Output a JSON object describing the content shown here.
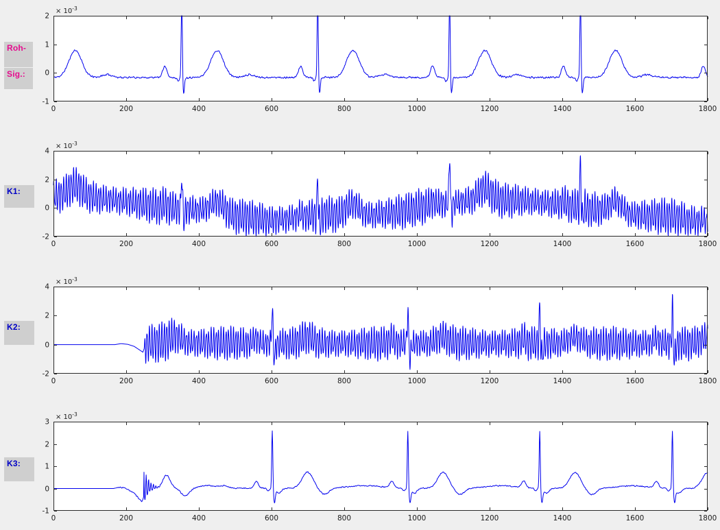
{
  "figure": {
    "bg": "#efefef",
    "plot_bg": "#ffffff",
    "frame_color": "#2a2a2a",
    "tick_label_color": "#1a1a1a",
    "line_color": "#0000ee",
    "label_pink": "#e60a8e",
    "label_blue": "#0000c6"
  },
  "side_labels": [
    {
      "text": "Roh-",
      "color": "#e60a8e"
    },
    {
      "text": "Sig.:",
      "color": "#e60a8e"
    },
    {
      "text": "K1:",
      "color": "#0000c6"
    },
    {
      "text": "K2:",
      "color": "#0000c6"
    },
    {
      "text": "K3:",
      "color": "#0000c6"
    }
  ],
  "chart_data": [
    {
      "id": "roh_sig",
      "type": "line",
      "label": "Roh-Sig.:",
      "line_color": "#0000ee",
      "xlim": [
        0,
        1800
      ],
      "ylim": [
        -1,
        2
      ],
      "x_ticks": [
        0,
        200,
        400,
        600,
        800,
        1000,
        1200,
        1400,
        1600,
        1800
      ],
      "y_ticks": [
        -1,
        0,
        1,
        2
      ],
      "y_scale": {
        "mantissa": "× 10",
        "exponent": "-3"
      },
      "units": "1e-3",
      "description": "Raw ECG: QRS spikes near t=353/727/1090/1450 clipped at 2e-3, S-dips to -0.6e-3, T-waves ~0.8e-3 at t=60/450/824/1187/1547, P-waves ~0.25e-3, baseline -0.16e-3 with noise",
      "signal": {
        "step": 1,
        "seed": 11,
        "noise_amp": 0.045,
        "drift": [
          [
            0,
            -0.16
          ],
          [
            1800,
            -0.16
          ]
        ],
        "beats": {
          "times": [
            -37,
            353,
            727,
            1090,
            1450,
            1835
          ],
          "components": [
            {
              "dt": -47,
              "amp": 0.4,
              "width": 8
            },
            {
              "dt": -10,
              "amp": -0.12,
              "width": 4
            },
            {
              "dt": 0,
              "amp": 3.3,
              "width": 2.1
            },
            {
              "dt": 5,
              "amp": -0.55,
              "width": 3.2
            },
            {
              "dt": 97,
              "amp": 0.95,
              "width": 25
            },
            {
              "dt": 185,
              "amp": 0.1,
              "width": 20
            }
          ]
        },
        "gauss": [],
        "damped": [],
        "osc": null
      }
    },
    {
      "id": "k1",
      "type": "line",
      "label": "K1:",
      "line_color": "#0000ee",
      "xlim": [
        0,
        1800
      ],
      "ylim": [
        -2,
        4
      ],
      "x_ticks": [
        0,
        200,
        400,
        600,
        800,
        1000,
        1200,
        1400,
        1600,
        1800
      ],
      "y_ticks": [
        -2,
        0,
        2,
        4
      ],
      "y_scale": {
        "mantissa": "× 10",
        "exponent": "-3"
      },
      "units": "1e-3",
      "description": "ECG with strong mains-interference comb (~±1e-3) and baseline wander from +0.9e-3 down to -1.1e-3; QRS spikes at 353(2.6)/727(2.6)/1090(4, clipped)/1450(3.2)",
      "signal": {
        "step": 0.5,
        "seed": 23,
        "noise_amp": 0.09,
        "drift": [
          [
            0,
            0.85
          ],
          [
            100,
            0.75
          ],
          [
            200,
            0.45
          ],
          [
            300,
            0.05
          ],
          [
            400,
            -0.15
          ],
          [
            500,
            -0.55
          ],
          [
            600,
            -0.9
          ],
          [
            650,
            -0.75
          ],
          [
            750,
            -0.45
          ],
          [
            850,
            -0.55
          ],
          [
            950,
            -0.3
          ],
          [
            1050,
            0.25
          ],
          [
            1180,
            0.55
          ],
          [
            1300,
            0.5
          ],
          [
            1400,
            0.25
          ],
          [
            1480,
            -0.1
          ],
          [
            1600,
            -0.5
          ],
          [
            1700,
            -0.6
          ],
          [
            1800,
            -1.1
          ]
        ],
        "beats": {
          "times": [
            -37,
            353,
            727,
            1090,
            1450,
            1835
          ],
          "components": [
            {
              "dt": -47,
              "amp": 0.25,
              "width": 8
            },
            {
              "dt": 97,
              "amp": 0.8,
              "width": 25
            }
          ]
        },
        "gauss": [
          {
            "t": 353,
            "amp": 2.5,
            "width": 2.2
          },
          {
            "t": 359,
            "amp": -0.8,
            "width": 3
          },
          {
            "t": 727,
            "amp": 2.6,
            "width": 2.2
          },
          {
            "t": 733,
            "amp": -0.8,
            "width": 3
          },
          {
            "t": 1090,
            "amp": 3.5,
            "width": 2.2
          },
          {
            "t": 1096,
            "amp": -0.8,
            "width": 3
          },
          {
            "t": 1450,
            "amp": 3.1,
            "width": 2.2
          },
          {
            "t": 1456,
            "amp": -0.8,
            "width": 3
          }
        ],
        "damped": [],
        "osc": {
          "amp": 0.85,
          "period": 6.83,
          "phase": 0.7,
          "amp2": 0.3,
          "period2": 3.91,
          "am_depth": 0.22,
          "am_period": 233,
          "start": -100,
          "ramp": 1
        }
      }
    },
    {
      "id": "k2",
      "type": "line",
      "label": "K2:",
      "line_color": "#0000ee",
      "xlim": [
        0,
        1800
      ],
      "ylim": [
        -2,
        4
      ],
      "x_ticks": [
        0,
        200,
        400,
        600,
        800,
        1000,
        1200,
        1400,
        1600,
        1800
      ],
      "y_ticks": [
        -2,
        0,
        2,
        4
      ],
      "y_scale": {
        "mantissa": "× 10",
        "exponent": "-3"
      },
      "units": "1e-3",
      "description": "Filter stage K2: flat 0 until ~185, smooth dip to -0.5e-3 at 246, then mains comb ±1e-3 around ~0.1e-3 with QRS spikes at 602/975/1338/1703 reaching ~2.9e-3 and T-envelope bumps",
      "signal": {
        "step": 0.5,
        "seed": 37,
        "noise_amp": 0.07,
        "quiet_until": 247,
        "drift": [
          [
            0,
            0
          ],
          [
            168,
            0
          ],
          [
            186,
            0.07
          ],
          [
            205,
            0.02
          ],
          [
            222,
            -0.12
          ],
          [
            236,
            -0.35
          ],
          [
            246,
            -0.52
          ],
          [
            252,
            -0.1
          ],
          [
            262,
            0.1
          ],
          [
            300,
            0.12
          ],
          [
            600,
            0.08
          ],
          [
            1800,
            0.08
          ]
        ],
        "beats": {
          "times": [
            602,
            975,
            1338,
            1703
          ],
          "components": [
            {
              "dt": -45,
              "amp": 0.35,
              "width": 9
            },
            {
              "dt": 96,
              "amp": 0.45,
              "width": 24
            }
          ]
        },
        "gauss": [
          {
            "t": 334,
            "amp": 0.45,
            "width": 24
          },
          {
            "t": 602,
            "amp": 2.5,
            "width": 2.3
          },
          {
            "t": 608,
            "amp": -0.9,
            "width": 4
          },
          {
            "t": 975,
            "amp": 2.45,
            "width": 2.3
          },
          {
            "t": 981,
            "amp": -0.9,
            "width": 4
          },
          {
            "t": 1338,
            "amp": 2.4,
            "width": 2.3
          },
          {
            "t": 1344,
            "amp": -0.9,
            "width": 4
          },
          {
            "t": 1703,
            "amp": 2.5,
            "width": 2.3
          },
          {
            "t": 1709,
            "amp": -0.9,
            "width": 4
          }
        ],
        "damped": [],
        "osc": {
          "amp": 0.8,
          "period": 6.79,
          "phase": 2.1,
          "amp2": 0.28,
          "period2": 3.87,
          "am_depth": 0.18,
          "am_period": 211,
          "start": 249,
          "ramp": 4,
          "boost": [
            {
              "t": 310,
              "amp": 0.35,
              "width": 38
            }
          ]
        }
      }
    },
    {
      "id": "k3",
      "type": "line",
      "label": "K3:",
      "line_color": "#0000ee",
      "xlim": [
        0,
        1800
      ],
      "ylim": [
        -1,
        3
      ],
      "x_ticks": [
        0,
        200,
        400,
        600,
        800,
        1000,
        1200,
        1400,
        1600,
        1800
      ],
      "y_ticks": [
        -1,
        0,
        1,
        2,
        3
      ],
      "y_scale": {
        "mantissa": "× 10",
        "exponent": "-3"
      },
      "units": "1e-3",
      "description": "Filtered ECG K3: flat 0 until ~170, dip to -0.6e-3 at 243 with damped ringing (first peak 1.25e-3 at 250), T bump 0.58e-3 at 311; clean beats at 602/975/1338/1703 with R~2.35e-3, S~-0.55e-3, T~0.7e-3 at +97",
      "signal": {
        "step": 1,
        "seed": 51,
        "noise_amp": 0.035,
        "quiet_until": 172,
        "drift": [
          [
            0,
            0
          ],
          [
            165,
            0
          ],
          [
            182,
            0.06
          ],
          [
            200,
            0.01
          ],
          [
            222,
            -0.2
          ],
          [
            243,
            -0.6
          ],
          [
            252,
            -0.2
          ],
          [
            262,
            -0.02
          ],
          [
            275,
            0.02
          ],
          [
            1800,
            0
          ]
        ],
        "damped": [
          {
            "t0": 248.5,
            "amp": 1.25,
            "decay": 13,
            "period": 6.6,
            "neg_scale": 0.3
          }
        ],
        "gauss": [
          {
            "t": 311,
            "amp": 0.58,
            "width": 14
          },
          {
            "t": 362,
            "amp": -0.35,
            "width": 16
          },
          {
            "t": 425,
            "amp": 0.12,
            "width": 28
          },
          {
            "t": 470,
            "amp": 0.1,
            "width": 16
          }
        ],
        "beats": {
          "times": [
            602,
            975,
            1338,
            1703
          ],
          "components": [
            {
              "dt": -44,
              "amp": 0.3,
              "width": 8
            },
            {
              "dt": -11,
              "amp": -0.12,
              "width": 5
            },
            {
              "dt": 0,
              "amp": 2.6,
              "width": 2.1
            },
            {
              "dt": 6,
              "amp": -0.6,
              "width": 3.4
            },
            {
              "dt": 18,
              "amp": -0.22,
              "width": 10
            },
            {
              "dt": 97,
              "amp": 0.72,
              "width": 21
            },
            {
              "dt": 143,
              "amp": -0.28,
              "width": 18
            },
            {
              "dt": 255,
              "amp": 0.12,
              "width": 60
            }
          ]
        },
        "osc": null
      }
    }
  ]
}
